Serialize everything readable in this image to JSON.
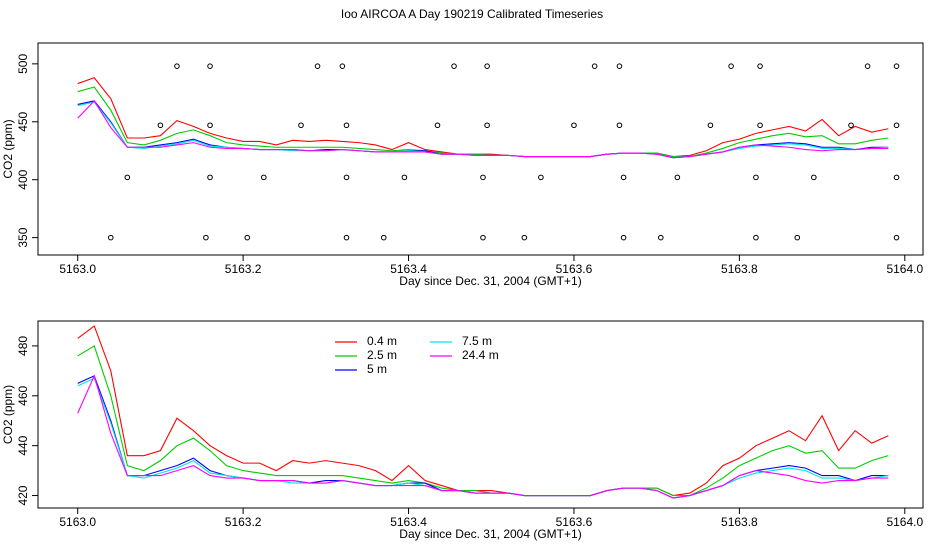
{
  "chart_data": [
    {
      "type": "line",
      "title": "Ioo AIRCOA A  Day 190219  Calibrated Timeseries",
      "x_label": "Day since Dec. 31, 2004 (GMT+1)",
      "y_label": "CO2 (ppm)",
      "xlim": [
        5162.952,
        5164.022
      ],
      "ylim": [
        335,
        518
      ],
      "xticks": [
        {
          "value": 5163,
          "label": "5163.0"
        },
        5163.2,
        5163.4,
        5163.6,
        5163.8,
        {
          "value": 5164,
          "label": "5164.0"
        }
      ],
      "yticks": [
        350,
        400,
        450,
        500
      ],
      "x": [
        5163,
        5163.02,
        5163.04,
        5163.06,
        5163.08,
        5163.1,
        5163.12,
        5163.14,
        5163.16,
        5163.18,
        5163.2,
        5163.22,
        5163.24,
        5163.26,
        5163.28,
        5163.3,
        5163.32,
        5163.34,
        5163.36,
        5163.38,
        5163.4,
        5163.42,
        5163.44,
        5163.46,
        5163.48,
        5163.5,
        5163.52,
        5163.54,
        5163.56,
        5163.58,
        5163.6,
        5163.62,
        5163.64,
        5163.66,
        5163.68,
        5163.7,
        5163.72,
        5163.74,
        5163.76,
        5163.78,
        5163.8,
        5163.82,
        5163.84,
        5163.86,
        5163.88,
        5163.9,
        5163.92,
        5163.94,
        5163.96,
        5163.98
      ],
      "series": [
        {
          "color": "#ff0000",
          "values": [
            483,
            488,
            470,
            436,
            436,
            438,
            451,
            446,
            440,
            436,
            433,
            433,
            430,
            434,
            433,
            434,
            433,
            432,
            430,
            426,
            432,
            426,
            424,
            422,
            422,
            422,
            421,
            420,
            420,
            420,
            420,
            420,
            422,
            423,
            423,
            423,
            420,
            421,
            425,
            432,
            435,
            440,
            443,
            446,
            442,
            452,
            438,
            446,
            441,
            444
          ]
        },
        {
          "color": "#00cd00",
          "values": [
            476,
            480,
            460,
            432,
            430,
            434,
            440,
            443,
            438,
            432,
            430,
            429,
            428,
            428,
            428,
            428,
            428,
            427,
            426,
            425,
            426,
            425,
            423,
            422,
            422,
            421,
            421,
            420,
            420,
            420,
            420,
            420,
            422,
            423,
            423,
            423,
            420,
            420,
            423,
            427,
            432,
            435,
            438,
            440,
            437,
            438,
            431,
            431,
            434,
            436
          ]
        },
        {
          "color": "#0000ff",
          "values": [
            465,
            468,
            450,
            428,
            428,
            430,
            432,
            435,
            430,
            428,
            427,
            426,
            426,
            426,
            425,
            426,
            426,
            425,
            424,
            424,
            425,
            425,
            422,
            422,
            421,
            421,
            421,
            420,
            420,
            420,
            420,
            420,
            422,
            423,
            423,
            422,
            419,
            420,
            422,
            424,
            428,
            430,
            431,
            432,
            431,
            428,
            428,
            426,
            428,
            428
          ]
        },
        {
          "color": "#00e5e5",
          "values": [
            464,
            467,
            449,
            428,
            427,
            429,
            431,
            434,
            429,
            428,
            427,
            426,
            426,
            425,
            425,
            425,
            426,
            425,
            424,
            424,
            425,
            424,
            422,
            422,
            421,
            421,
            421,
            420,
            420,
            420,
            420,
            420,
            422,
            423,
            423,
            422,
            419,
            420,
            422,
            424,
            427,
            429,
            430,
            431,
            430,
            427,
            427,
            426,
            427,
            428
          ]
        },
        {
          "color": "#ff00ff",
          "values": [
            453,
            468,
            445,
            428,
            428,
            428,
            430,
            432,
            428,
            427,
            427,
            426,
            426,
            426,
            425,
            425,
            426,
            425,
            424,
            424,
            424,
            424,
            422,
            422,
            421,
            421,
            421,
            420,
            420,
            420,
            420,
            420,
            422,
            423,
            423,
            422,
            419,
            420,
            422,
            424,
            428,
            430,
            429,
            428,
            426,
            425,
            426,
            426,
            427,
            427
          ]
        }
      ],
      "points": {
        "x": [
          5163.04,
          5163.155,
          5163.205,
          5163.325,
          5163.37,
          5163.49,
          5163.54,
          5163.66,
          5163.705,
          5163.82,
          5163.87,
          5163.99,
          5163.06,
          5163.16,
          5163.225,
          5163.325,
          5163.395,
          5163.49,
          5163.56,
          5163.66,
          5163.725,
          5163.82,
          5163.89,
          5163.99,
          5163.1,
          5163.16,
          5163.27,
          5163.325,
          5163.435,
          5163.495,
          5163.6,
          5163.655,
          5163.765,
          5163.825,
          5163.935,
          5163.99,
          5163.12,
          5163.16,
          5163.29,
          5163.32,
          5163.455,
          5163.495,
          5163.625,
          5163.655,
          5163.79,
          5163.825,
          5163.955,
          5163.99
        ],
        "y": [
          350,
          350,
          350,
          350,
          350,
          350,
          350,
          350,
          350,
          350,
          350,
          350,
          402,
          402,
          402,
          402,
          402,
          402,
          402,
          402,
          402,
          402,
          402,
          402,
          447,
          447,
          447,
          447,
          447,
          447,
          447,
          447,
          447,
          447,
          447,
          447,
          498,
          498,
          498,
          498,
          498,
          498,
          498,
          498,
          498,
          498,
          498,
          498
        ]
      }
    },
    {
      "type": "line",
      "x_label": "Day since Dec. 31, 2004 (GMT+1)",
      "y_label": "CO2 (ppm)",
      "xlim": [
        5162.952,
        5164.022
      ],
      "ylim": [
        415,
        490
      ],
      "xticks": [
        {
          "value": 5163,
          "label": "5163.0"
        },
        5163.2,
        5163.4,
        5163.6,
        5163.8,
        {
          "value": 5164,
          "label": "5164.0"
        }
      ],
      "yticks": [
        420,
        440,
        460,
        480
      ],
      "x": [
        5163,
        5163.02,
        5163.04,
        5163.06,
        5163.08,
        5163.1,
        5163.12,
        5163.14,
        5163.16,
        5163.18,
        5163.2,
        5163.22,
        5163.24,
        5163.26,
        5163.28,
        5163.3,
        5163.32,
        5163.34,
        5163.36,
        5163.38,
        5163.4,
        5163.42,
        5163.44,
        5163.46,
        5163.48,
        5163.5,
        5163.52,
        5163.54,
        5163.56,
        5163.58,
        5163.6,
        5163.62,
        5163.64,
        5163.66,
        5163.68,
        5163.7,
        5163.72,
        5163.74,
        5163.76,
        5163.78,
        5163.8,
        5163.82,
        5163.84,
        5163.86,
        5163.88,
        5163.9,
        5163.92,
        5163.94,
        5163.96,
        5163.98
      ],
      "series": [
        {
          "name": "0.4 m",
          "color": "#ff0000",
          "values": [
            483,
            488,
            470,
            436,
            436,
            438,
            451,
            446,
            440,
            436,
            433,
            433,
            430,
            434,
            433,
            434,
            433,
            432,
            430,
            426,
            432,
            426,
            424,
            422,
            422,
            422,
            421,
            420,
            420,
            420,
            420,
            420,
            422,
            423,
            423,
            423,
            420,
            421,
            425,
            432,
            435,
            440,
            443,
            446,
            442,
            452,
            438,
            446,
            441,
            444
          ]
        },
        {
          "name": "2.5 m",
          "color": "#00cd00",
          "values": [
            476,
            480,
            460,
            432,
            430,
            434,
            440,
            443,
            438,
            432,
            430,
            429,
            428,
            428,
            428,
            428,
            428,
            427,
            426,
            425,
            426,
            425,
            423,
            422,
            422,
            421,
            421,
            420,
            420,
            420,
            420,
            420,
            422,
            423,
            423,
            423,
            420,
            420,
            423,
            427,
            432,
            435,
            438,
            440,
            437,
            438,
            431,
            431,
            434,
            436
          ]
        },
        {
          "name": "5 m",
          "color": "#0000ff",
          "values": [
            465,
            468,
            450,
            428,
            428,
            430,
            432,
            435,
            430,
            428,
            427,
            426,
            426,
            426,
            425,
            426,
            426,
            425,
            424,
            424,
            425,
            425,
            422,
            422,
            421,
            421,
            421,
            420,
            420,
            420,
            420,
            420,
            422,
            423,
            423,
            422,
            419,
            420,
            422,
            424,
            428,
            430,
            431,
            432,
            431,
            428,
            428,
            426,
            428,
            428
          ]
        },
        {
          "name": "7.5 m",
          "color": "#00e5e5",
          "values": [
            464,
            467,
            449,
            428,
            427,
            429,
            431,
            434,
            429,
            428,
            427,
            426,
            426,
            425,
            425,
            425,
            426,
            425,
            424,
            424,
            425,
            424,
            422,
            422,
            421,
            421,
            421,
            420,
            420,
            420,
            420,
            420,
            422,
            423,
            423,
            422,
            419,
            420,
            422,
            424,
            427,
            429,
            430,
            431,
            430,
            427,
            427,
            426,
            427,
            428
          ]
        },
        {
          "name": "24.4 m",
          "color": "#ff00ff",
          "values": [
            453,
            468,
            445,
            428,
            428,
            428,
            430,
            432,
            428,
            427,
            427,
            426,
            426,
            426,
            425,
            425,
            426,
            425,
            424,
            424,
            424,
            424,
            422,
            422,
            421,
            421,
            421,
            420,
            420,
            420,
            420,
            420,
            422,
            423,
            423,
            422,
            419,
            420,
            422,
            424,
            428,
            430,
            429,
            428,
            426,
            425,
            426,
            426,
            427,
            427
          ]
        }
      ]
    }
  ]
}
